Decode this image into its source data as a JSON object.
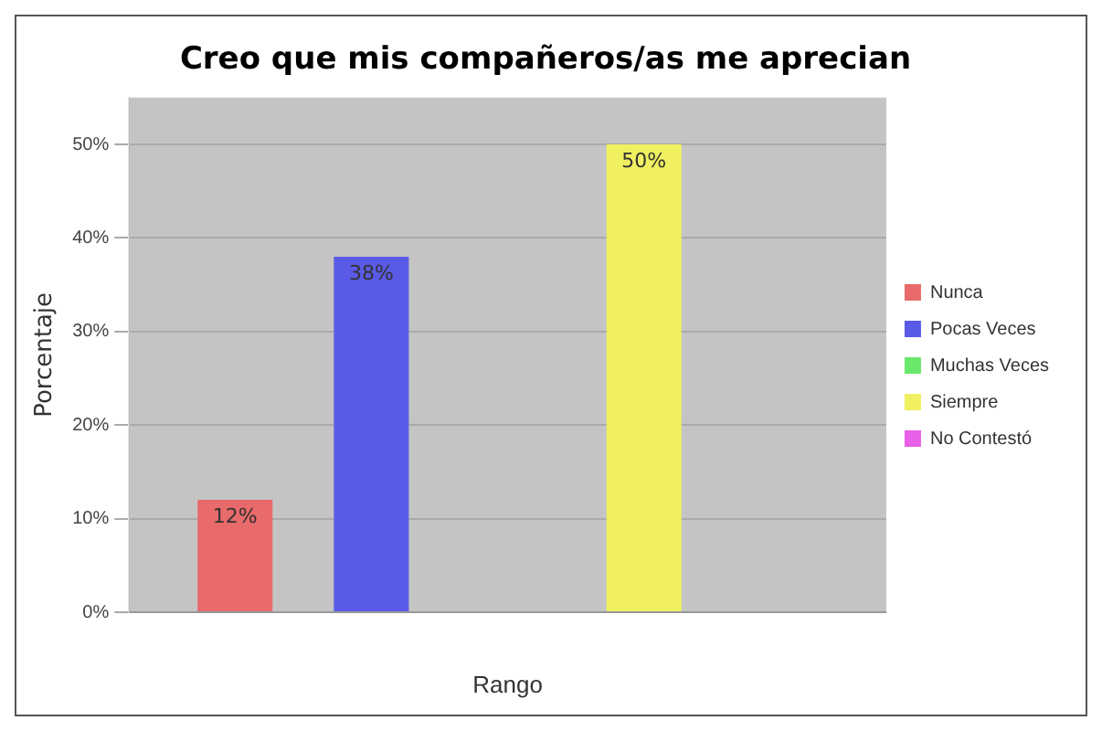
{
  "chart_data": {
    "type": "bar",
    "title": "Creo que mis compañeros/as me aprecian",
    "xlabel": "Rango",
    "ylabel": "Porcentaje",
    "categories": [
      null
    ],
    "series": [
      {
        "name": "Nunca",
        "color": "#e86a6a",
        "values": [
          12
        ],
        "value_labels": [
          "12%"
        ]
      },
      {
        "name": "Pocas Veces",
        "color": "#5a5ae8",
        "values": [
          38
        ],
        "value_labels": [
          "38%"
        ]
      },
      {
        "name": "Muchas Veces",
        "color": "#6ae86a",
        "values": [
          0
        ],
        "value_labels": [
          null
        ]
      },
      {
        "name": "Siempre",
        "color": "#f0f060",
        "values": [
          50
        ],
        "value_labels": [
          "50%"
        ]
      },
      {
        "name": "No Contestó",
        "color": "#e860e8",
        "values": [
          0
        ],
        "value_labels": [
          null
        ]
      }
    ],
    "ylim": [
      0,
      55
    ],
    "yticks": [
      {
        "value": 0,
        "label": "0%"
      },
      {
        "value": 10,
        "label": "10%"
      },
      {
        "value": 20,
        "label": "20%"
      },
      {
        "value": 30,
        "label": "30%"
      },
      {
        "value": 40,
        "label": "40%"
      },
      {
        "value": 50,
        "label": "50%"
      }
    ],
    "grid": "y",
    "legend": "right"
  }
}
